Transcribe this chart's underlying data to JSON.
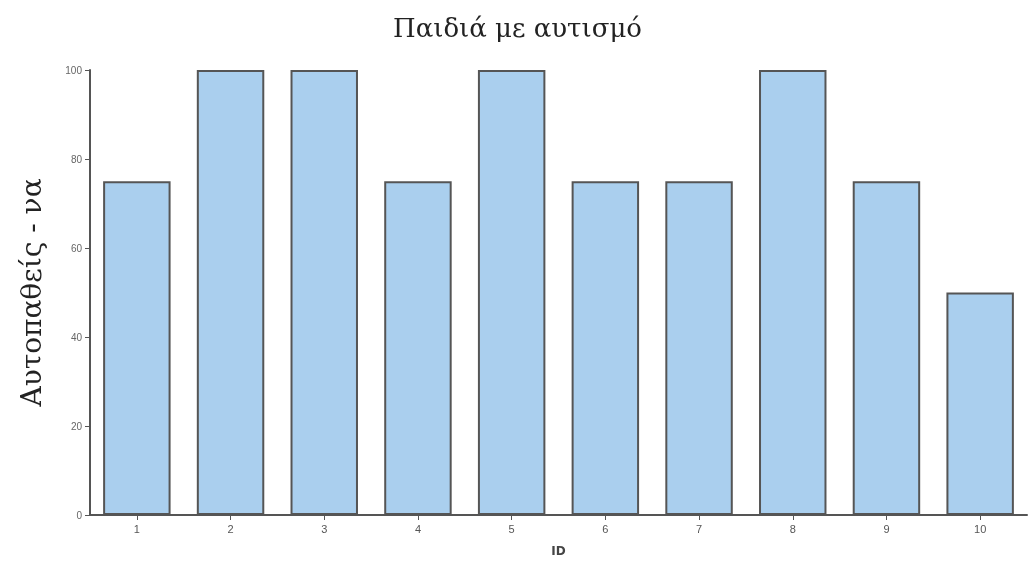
{
  "chart_data": {
    "type": "bar",
    "title": "Παιδιά με αυτισμό",
    "xlabel": "ID",
    "ylabel": "Αυτοπαθείς - να",
    "categories": [
      "1",
      "2",
      "3",
      "4",
      "5",
      "6",
      "7",
      "8",
      "9",
      "10"
    ],
    "values": [
      75,
      100,
      100,
      75,
      100,
      75,
      75,
      100,
      75,
      50
    ],
    "color": "#aacfee",
    "ylim": [
      0,
      100
    ],
    "yticks": [
      0,
      20,
      40,
      60,
      80,
      100
    ],
    "grid": false
  }
}
